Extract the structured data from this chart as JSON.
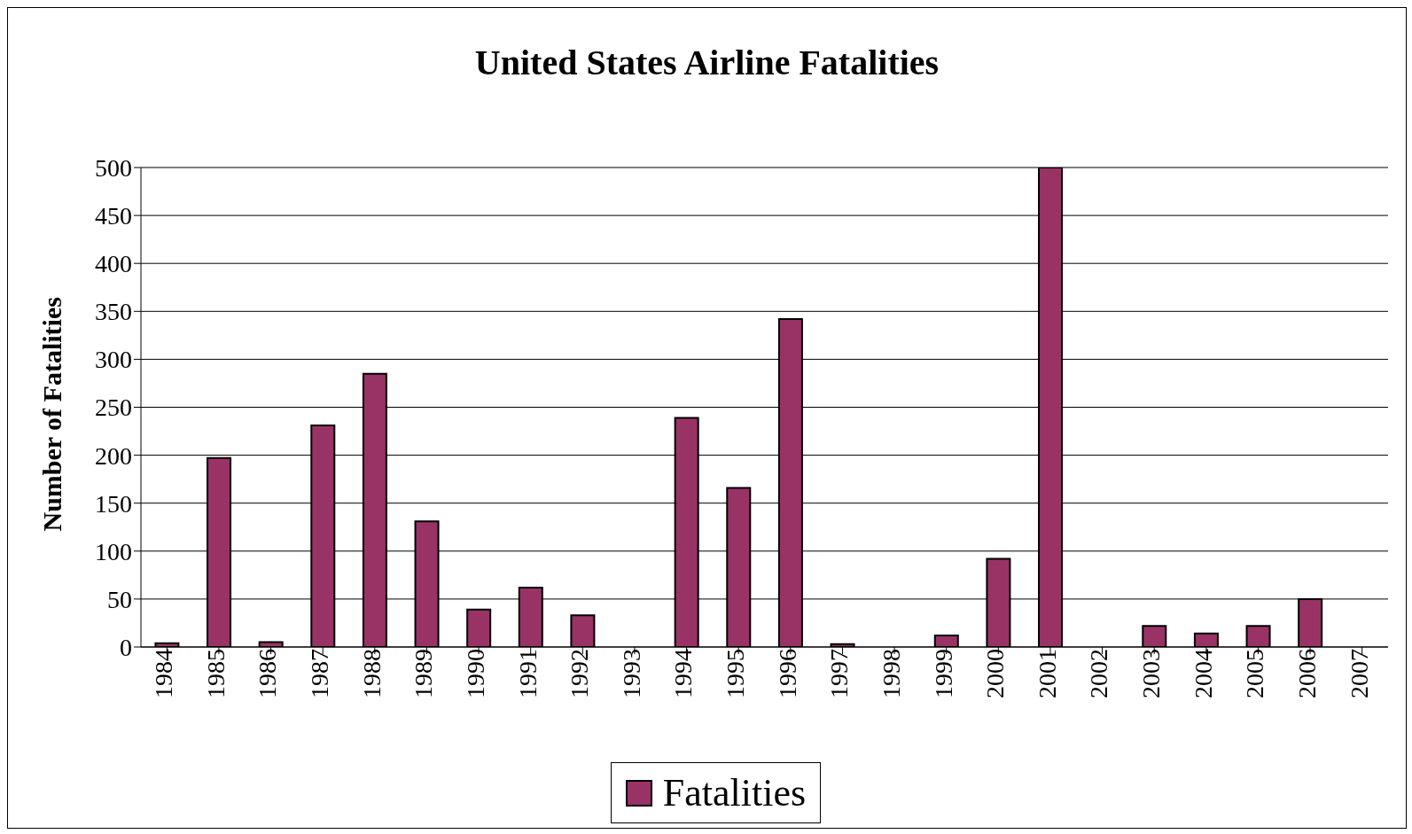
{
  "chart_data": {
    "type": "bar",
    "title": "United States Airline Fatalities",
    "ylabel": "Number of Fatalities",
    "categories": [
      "1984",
      "1985",
      "1986",
      "1987",
      "1988",
      "1989",
      "1990",
      "1991",
      "1992",
      "1993",
      "1994",
      "1995",
      "1996",
      "1997",
      "1998",
      "1999",
      "2000",
      "2001",
      "2002",
      "2003",
      "2004",
      "2005",
      "2006",
      "2007"
    ],
    "series": [
      {
        "name": "Fatalities",
        "color": "#993366",
        "values": [
          4,
          197,
          5,
          231,
          285,
          131,
          39,
          62,
          33,
          0,
          239,
          166,
          342,
          3,
          0,
          12,
          92,
          500,
          0,
          22,
          14,
          22,
          50,
          0
        ]
      }
    ],
    "ylim": [
      0,
      500
    ],
    "yticks": [
      0,
      50,
      100,
      150,
      200,
      250,
      300,
      350,
      400,
      450,
      500
    ],
    "grid": "y",
    "legend": "bottom"
  }
}
